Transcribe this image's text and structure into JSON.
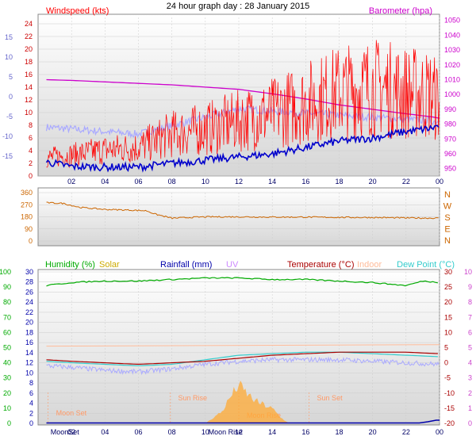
{
  "title": "24 hour graph day : 28 January 2015",
  "x_ticks": [
    "02",
    "04",
    "06",
    "08",
    "10",
    "12",
    "14",
    "16",
    "18",
    "20",
    "22",
    "00"
  ],
  "colors": {
    "windspeed": "#ff0000",
    "gust_blue": "#0000cc",
    "temp_light": "#aaaaff",
    "barometer": "#cc00cc",
    "direction": "#cc6600",
    "humidity": "#00aa00",
    "temperature": "#aa0000",
    "indoor": "#ffbb99",
    "dewpoint": "#33cccc",
    "rainfall": "#0000aa",
    "solar": "#ffaa33"
  },
  "chart_data": [
    {
      "type": "line",
      "labels": {
        "left": "Windspeed (kts)",
        "right": "Barometer (hpa)"
      },
      "y_left_ticks": [
        "24",
        "22",
        "20",
        "18",
        "16",
        "14",
        "12",
        "10",
        "8",
        "6",
        "4",
        "2",
        "0"
      ],
      "y_left_alt_ticks": [
        "15",
        "10",
        "5",
        "0",
        "-5",
        "-10",
        "-15"
      ],
      "y_right_ticks": [
        "1050",
        "1040",
        "1030",
        "1020",
        "1010",
        "1000",
        "990",
        "980",
        "970",
        "960",
        "950"
      ],
      "ylim_left": [
        0,
        25
      ],
      "ylim_right": [
        945,
        1052
      ],
      "x_hours": [
        0.5,
        2,
        4,
        6,
        8,
        10,
        12,
        14,
        16,
        18,
        20,
        22,
        23.5,
        24
      ],
      "series": [
        {
          "values": [
            3.5,
            4,
            5,
            5.5,
            8,
            9,
            10.5,
            12,
            14,
            16,
            17,
            16,
            15.5,
            14
          ]
        },
        {
          "values": [
            2.2,
            1.5,
            1.4,
            1.4,
            2,
            2.5,
            3,
            3.5,
            4.5,
            5.5,
            6,
            7,
            7.5,
            8
          ]
        },
        {
          "values": [
            1010,
            1009.5,
            1008.5,
            1007.5,
            1006.5,
            1005,
            1003.5,
            1000.5,
            997,
            993,
            990,
            987,
            985,
            984
          ]
        }
      ]
    },
    {
      "type": "line",
      "y_ticks": [
        "360",
        "270",
        "180",
        "90",
        "0"
      ],
      "compass": [
        "N",
        "W",
        "S",
        "E",
        "N"
      ],
      "ylim": [
        0,
        360
      ],
      "series": [
        {
          "x": [
            0.5,
            1.5,
            2.5,
            3.5,
            4,
            5.5,
            6.5,
            7,
            8,
            9,
            10,
            12,
            14,
            16,
            18,
            20,
            22,
            24
          ],
          "values": [
            285,
            280,
            250,
            240,
            235,
            230,
            225,
            200,
            170,
            175,
            180,
            180,
            178,
            178,
            176,
            175,
            172,
            170
          ]
        }
      ]
    },
    {
      "type": "line",
      "labels": {
        "humidity": "Humidity (%)",
        "solar": "Solar",
        "rainfall": "Rainfall (mm)",
        "uv": "UV",
        "temperature": "Temperature (°C)",
        "indoor": "Indoor",
        "dewpoint": "Dew Point (°C)"
      },
      "y_hum_ticks": [
        "100",
        "90",
        "80",
        "70",
        "60",
        "50",
        "40",
        "30",
        "20",
        "10",
        "0"
      ],
      "y_rain_ticks": [
        "30",
        "28",
        "26",
        "24",
        "22",
        "20",
        "18",
        "16",
        "14",
        "12",
        "10",
        "8",
        "6",
        "4",
        "2",
        "0"
      ],
      "y_temp_ticks": [
        "30",
        "25",
        "20",
        "15",
        "10",
        "5",
        "0",
        "-5",
        "-10",
        "-15",
        "-20"
      ],
      "y_uv_ticks": [
        "10",
        "9",
        "8",
        "7",
        "6",
        "5",
        "4",
        "3",
        "2",
        "1",
        "0"
      ],
      "ylim_temp": [
        -20,
        30
      ],
      "annotations": [
        "Moon Set",
        "Sun Rise",
        "Moon Rise",
        "Sun Set"
      ],
      "x_labels_extra": [
        "MoonSet",
        "Moon Rise"
      ],
      "series": [
        {
          "x": [
            0.5,
            2,
            4,
            6,
            8,
            10,
            12,
            14,
            16,
            18,
            20,
            22,
            23,
            24
          ],
          "values": [
            91,
            93,
            94,
            94,
            95,
            96,
            96,
            95,
            95,
            94,
            93,
            91,
            94,
            93
          ]
        },
        {
          "x": [
            0.5,
            2,
            4,
            6,
            8,
            10,
            12,
            14,
            16,
            18,
            20,
            22,
            24
          ],
          "values": [
            1,
            0.5,
            0,
            -0.5,
            0,
            0.5,
            1.5,
            2.5,
            3,
            3.5,
            3.5,
            3.5,
            3
          ]
        },
        {
          "x": [
            0.5,
            2,
            4,
            6,
            8,
            10,
            12,
            14,
            16,
            18,
            20,
            22,
            24
          ],
          "values": [
            0.5,
            0,
            -0.5,
            -1,
            -0.5,
            1,
            2.5,
            3,
            3.5,
            3.5,
            3,
            2.5,
            2
          ]
        },
        {
          "x": [
            0.5,
            2,
            4,
            6,
            8,
            10,
            12,
            14,
            16,
            18,
            20,
            22,
            24
          ],
          "values": [
            -1,
            -1.5,
            -2.5,
            -3,
            -2,
            -0.5,
            0.5,
            1,
            1,
            1,
            0.5,
            0,
            -0.5
          ]
        },
        {
          "x": [
            0.5,
            24
          ],
          "values": [
            5.5,
            6
          ]
        },
        {
          "x": [
            10,
            11,
            11.5,
            12,
            12.5,
            13,
            14,
            14.5,
            15
          ],
          "values": [
            0,
            80,
            180,
            260,
            200,
            150,
            100,
            40,
            0
          ]
        }
      ]
    }
  ]
}
